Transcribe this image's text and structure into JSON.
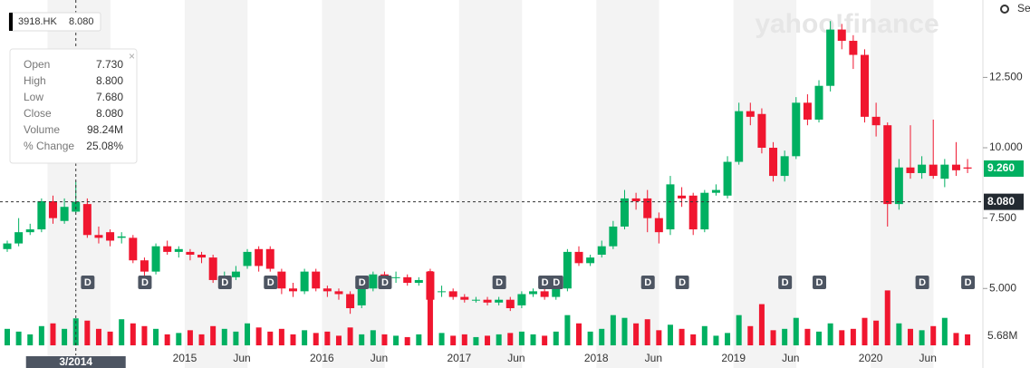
{
  "chart_data": {
    "type": "candlestick",
    "symbol": "3918.HK",
    "last": "8.080",
    "settings": "Se",
    "watermark": "yahoo!finance",
    "dates": [
      "2013-09",
      "2013-10",
      "2013-11",
      "2013-12",
      "2014-01",
      "2014-02",
      "2014-03",
      "2014-04",
      "2014-05",
      "2014-06",
      "2014-07",
      "2014-08",
      "2014-09",
      "2014-10",
      "2014-11",
      "2014-12",
      "2015-01",
      "2015-02",
      "2015-03",
      "2015-04",
      "2015-05",
      "2015-06",
      "2015-07",
      "2015-08",
      "2015-09",
      "2015-10",
      "2015-11",
      "2015-12",
      "2016-01",
      "2016-02",
      "2016-03",
      "2016-04",
      "2016-05",
      "2016-06",
      "2016-07",
      "2016-08",
      "2016-09",
      "2016-10",
      "2016-11",
      "2016-12",
      "2017-01",
      "2017-02",
      "2017-03",
      "2017-04",
      "2017-05",
      "2017-06",
      "2017-07",
      "2017-08",
      "2017-09",
      "2017-10",
      "2017-11",
      "2017-12",
      "2018-01",
      "2018-02",
      "2018-03",
      "2018-04",
      "2018-05",
      "2018-06",
      "2018-07",
      "2018-08",
      "2018-09",
      "2018-10",
      "2018-11",
      "2018-12",
      "2019-01",
      "2019-02",
      "2019-03",
      "2019-04",
      "2019-05",
      "2019-06",
      "2019-07",
      "2019-08",
      "2019-09",
      "2019-10",
      "2019-11",
      "2019-12",
      "2020-01",
      "2020-02",
      "2020-03",
      "2020-04",
      "2020-05",
      "2020-06",
      "2020-07",
      "2020-08",
      "2020-09"
    ],
    "open": [
      6.4,
      6.6,
      7.0,
      7.1,
      8.1,
      7.4,
      7.73,
      8.0,
      6.9,
      7.0,
      6.8,
      6.8,
      6.0,
      5.6,
      6.5,
      6.3,
      6.3,
      6.2,
      6.1,
      5.3,
      5.4,
      5.8,
      6.4,
      6.4,
      5.6,
      5.0,
      4.9,
      5.6,
      5.0,
      4.9,
      4.8,
      4.4,
      5.0,
      5.5,
      5.4,
      5.4,
      5.2,
      5.6,
      4.9,
      4.9,
      4.7,
      4.6,
      4.6,
      4.5,
      4.6,
      4.4,
      4.8,
      4.9,
      4.7,
      5.0,
      6.3,
      5.9,
      6.2,
      6.5,
      7.2,
      8.2,
      8.2,
      7.5,
      7.1,
      8.3,
      8.3,
      7.1,
      8.4,
      8.3,
      9.5,
      11.3,
      11.2,
      10.0,
      9.0,
      9.7,
      11.6,
      11.0,
      12.2,
      14.2,
      13.8,
      13.3,
      11.1,
      10.8,
      8.0,
      9.3,
      9.1,
      9.4,
      8.9,
      9.4,
      9.3
    ],
    "high": [
      6.7,
      7.5,
      7.3,
      8.2,
      8.3,
      8.2,
      8.8,
      8.2,
      7.2,
      7.1,
      7.0,
      6.9,
      6.1,
      6.6,
      6.7,
      6.5,
      6.4,
      6.3,
      6.2,
      5.6,
      5.8,
      6.4,
      6.5,
      6.5,
      5.7,
      5.2,
      5.7,
      5.7,
      5.1,
      5.0,
      4.9,
      5.1,
      5.6,
      5.6,
      5.6,
      5.5,
      5.4,
      5.7,
      5.1,
      5.0,
      4.8,
      4.7,
      4.7,
      4.7,
      4.7,
      4.9,
      5.0,
      5.0,
      5.2,
      6.4,
      6.5,
      6.2,
      6.7,
      7.4,
      8.5,
      8.4,
      8.5,
      7.7,
      9.0,
      8.6,
      8.4,
      8.5,
      8.7,
      9.7,
      11.6,
      11.6,
      11.4,
      10.2,
      9.9,
      11.8,
      11.9,
      12.4,
      14.5,
      14.4,
      14.0,
      13.5,
      11.6,
      10.9,
      9.6,
      10.8,
      9.7,
      11.0,
      9.6,
      10.2,
      9.6
    ],
    "low": [
      6.3,
      6.5,
      6.9,
      7.0,
      7.3,
      7.3,
      7.68,
      6.8,
      6.6,
      6.5,
      6.6,
      5.9,
      5.4,
      5.5,
      6.2,
      6.1,
      6.0,
      5.9,
      5.2,
      5.2,
      5.3,
      5.7,
      5.6,
      5.6,
      4.8,
      4.7,
      4.8,
      4.9,
      4.7,
      4.6,
      4.1,
      4.3,
      4.9,
      5.1,
      5.2,
      5.1,
      5.1,
      4.5,
      4.7,
      4.6,
      4.5,
      4.5,
      4.4,
      4.4,
      4.2,
      4.3,
      4.7,
      4.6,
      4.6,
      4.9,
      5.8,
      5.8,
      6.1,
      6.4,
      7.1,
      7.8,
      7.0,
      6.6,
      6.9,
      7.9,
      6.9,
      7.0,
      8.3,
      8.2,
      9.4,
      10.8,
      9.8,
      8.8,
      8.8,
      9.6,
      10.8,
      10.9,
      12.0,
      13.5,
      12.8,
      10.9,
      10.4,
      7.2,
      7.8,
      8.9,
      8.9,
      8.9,
      8.6,
      9.0,
      9.1
    ],
    "close": [
      6.6,
      7.0,
      7.1,
      8.1,
      7.5,
      7.9,
      8.08,
      6.9,
      6.8,
      6.7,
      6.85,
      6.0,
      5.6,
      6.5,
      6.3,
      6.4,
      6.2,
      6.1,
      5.3,
      5.3,
      5.6,
      6.3,
      5.8,
      5.7,
      5.0,
      4.9,
      5.6,
      5.0,
      4.9,
      4.8,
      4.3,
      5.0,
      5.5,
      5.3,
      5.4,
      5.2,
      5.3,
      4.6,
      4.9,
      4.7,
      4.6,
      4.6,
      4.5,
      4.6,
      4.3,
      4.8,
      4.9,
      4.7,
      5.1,
      6.3,
      5.9,
      6.1,
      6.5,
      7.2,
      8.2,
      8.1,
      7.5,
      7.0,
      8.7,
      8.2,
      7.1,
      8.4,
      8.5,
      9.5,
      11.3,
      11.1,
      10.0,
      9.0,
      9.7,
      11.6,
      11.0,
      12.2,
      14.2,
      13.8,
      13.3,
      11.1,
      10.8,
      8.0,
      9.3,
      9.1,
      9.4,
      9.0,
      9.4,
      9.2,
      9.26
    ],
    "volume": [
      60,
      50,
      40,
      70,
      80,
      60,
      98.24,
      90,
      60,
      50,
      95,
      80,
      70,
      60,
      40,
      45,
      55,
      40,
      70,
      60,
      50,
      80,
      65,
      50,
      60,
      40,
      55,
      45,
      50,
      35,
      65,
      40,
      55,
      40,
      35,
      30,
      40,
      270,
      45,
      35,
      40,
      30,
      35,
      40,
      45,
      50,
      40,
      35,
      50,
      110,
      80,
      50,
      60,
      110,
      100,
      80,
      95,
      55,
      75,
      60,
      40,
      70,
      35,
      45,
      110,
      70,
      150,
      55,
      60,
      100,
      60,
      50,
      80,
      55,
      60,
      100,
      90,
      200,
      80,
      60,
      55,
      70,
      100,
      45,
      40
    ],
    "volume_lim": [
      0,
      330
    ],
    "volume_label": "5.68M",
    "ylim": [
      2.4,
      15.25
    ],
    "yticks": [
      {
        "value": 5,
        "label": "5.000"
      },
      {
        "value": 7.5,
        "label": "7.500"
      },
      {
        "value": 10,
        "label": "10.000"
      },
      {
        "value": 12.5,
        "label": "12.500"
      }
    ],
    "xticks": [
      {
        "value": "2015-01",
        "label": "2015"
      },
      {
        "value": "2015-06",
        "label": "Jun"
      },
      {
        "value": "2016-01",
        "label": "2016"
      },
      {
        "value": "2016-06",
        "label": "Jun"
      },
      {
        "value": "2017-01",
        "label": "2017"
      },
      {
        "value": "2017-06",
        "label": "Jun"
      },
      {
        "value": "2018-01",
        "label": "2018"
      },
      {
        "value": "2018-06",
        "label": "Jun"
      },
      {
        "value": "2019-01",
        "label": "2019"
      },
      {
        "value": "2019-06",
        "label": "Jun"
      },
      {
        "value": "2020-01",
        "label": "2020"
      },
      {
        "value": "2020-06",
        "label": "Jun"
      }
    ],
    "current": {
      "value": 9.26,
      "label": "9.260"
    },
    "crosshair": {
      "date": "2014-03",
      "label": "3/2014",
      "value": 8.08,
      "price_label": "8.080"
    },
    "tooltip": [
      [
        "Open",
        "7.730"
      ],
      [
        "High",
        "8.800"
      ],
      [
        "Low",
        "7.680"
      ],
      [
        "Close",
        "8.080"
      ],
      [
        "Volume",
        "98.24M"
      ],
      [
        "% Change",
        "25.08%"
      ]
    ],
    "dividend_marker": "D",
    "dividends": [
      "2014-04",
      "2014-09",
      "2015-04",
      "2015-08",
      "2016-04",
      "2016-06",
      "2017-04",
      "2017-08",
      "2017-09",
      "2018-05",
      "2018-08",
      "2019-05",
      "2019-08",
      "2020-05",
      "2020-09"
    ],
    "up_color": "#00b061",
    "down_color": "#f0162f"
  }
}
